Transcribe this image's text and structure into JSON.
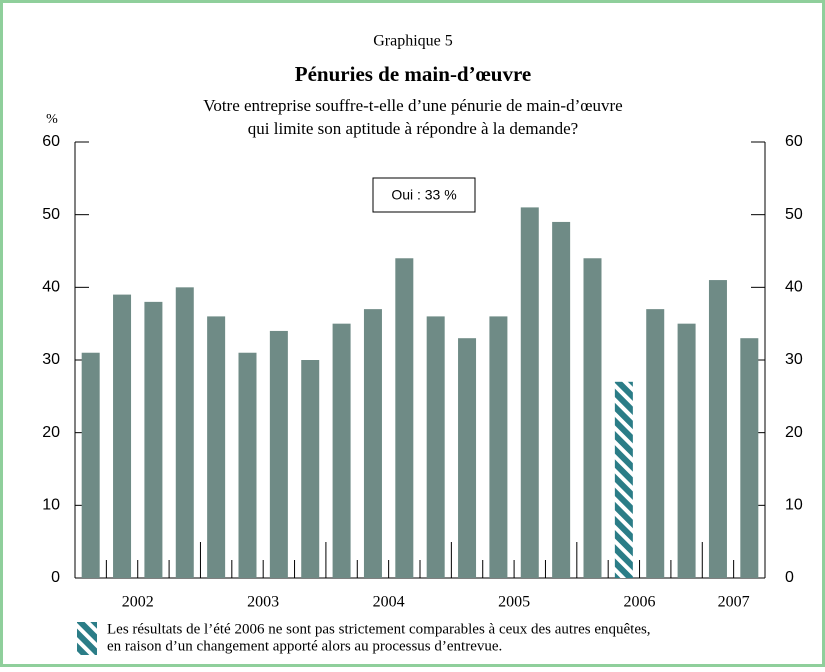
{
  "chart_data": {
    "type": "bar",
    "header": "Graphique 5",
    "title": "Pénuries de main-d’œuvre",
    "subtitle": [
      "Votre entreprise souffre-t-elle d’une pénurie de main-d’œuvre",
      "qui limite son aptitude à répondre à la demande?"
    ],
    "y_label": "%",
    "annotation": "Oui : 33 %",
    "year_labels": [
      "2002",
      "2003",
      "2004",
      "2005",
      "2006",
      "2007"
    ],
    "values": [
      31,
      39,
      38,
      40,
      36,
      31,
      34,
      30,
      35,
      37,
      44,
      36,
      33,
      36,
      51,
      49,
      44,
      27,
      37,
      35,
      41,
      33
    ],
    "color": "#6f8b86",
    "hatched": [
      17
    ],
    "hatch_color": "#2b7d87",
    "ylim": [
      0,
      60
    ],
    "yticks": [
      0,
      10,
      20,
      30,
      40,
      50,
      60
    ],
    "y2lim": [
      0,
      60
    ],
    "y2ticks": [
      0,
      10,
      20,
      30,
      40,
      50,
      60
    ],
    "note": [
      "Les résultats de l’été 2006 ne sont pas strictement comparables à ceux des autres enquêtes,",
      "en raison d’un changement apporté alors au processus d’entrevue."
    ]
  }
}
